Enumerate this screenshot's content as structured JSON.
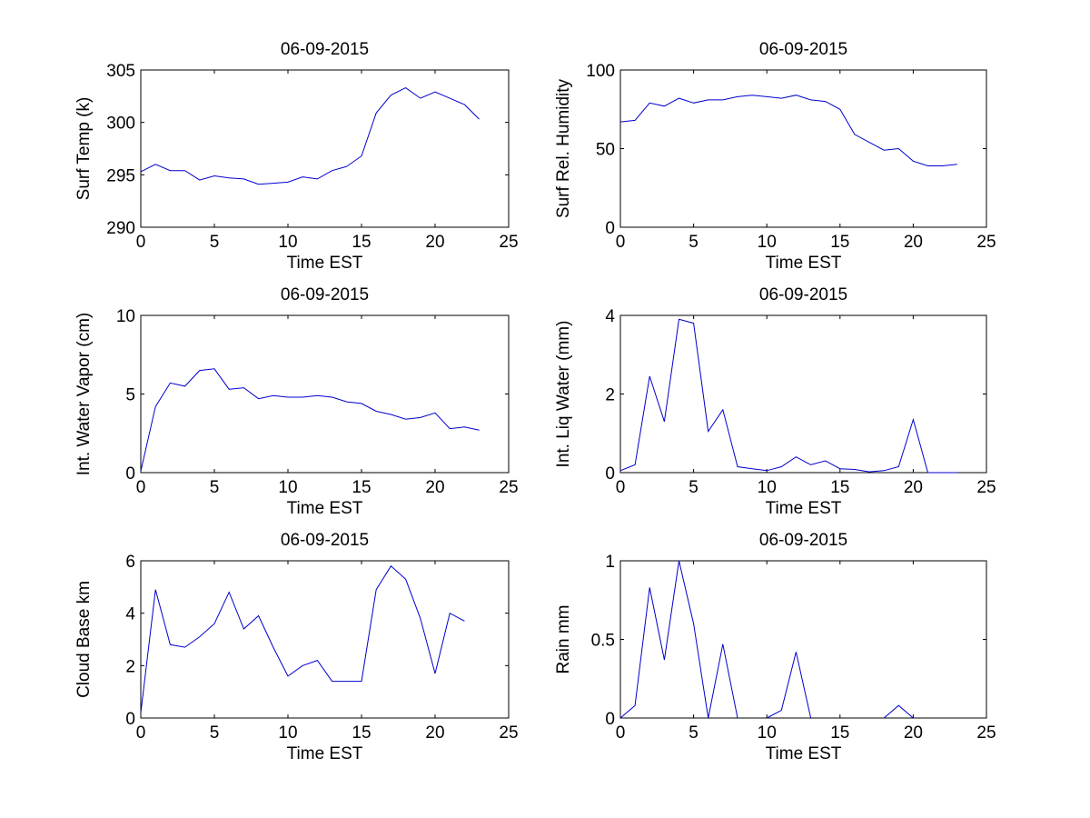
{
  "figure": {
    "colors": {
      "line": "#0000cc",
      "axes": "#000000",
      "background": "#ffffff"
    }
  },
  "chart_data": [
    {
      "type": "line",
      "title": "06-09-2015",
      "xlabel": "Time EST",
      "ylabel": "Surf Temp (k)",
      "xlim": [
        0,
        25
      ],
      "ylim": [
        290,
        305
      ],
      "xticks": [
        0,
        5,
        10,
        15,
        20,
        25
      ],
      "yticks": [
        290,
        295,
        300,
        305
      ],
      "x": [
        0,
        1,
        2,
        3,
        4,
        5,
        6,
        7,
        8,
        9,
        10,
        11,
        12,
        13,
        14,
        15,
        16,
        17,
        18,
        19,
        20,
        21,
        22,
        23
      ],
      "y": [
        295.3,
        296.0,
        295.4,
        295.4,
        294.5,
        294.9,
        294.7,
        294.6,
        294.1,
        294.2,
        294.3,
        294.8,
        294.6,
        295.4,
        295.8,
        296.8,
        300.9,
        302.6,
        303.3,
        302.3,
        302.9,
        302.3,
        301.7,
        300.3
      ]
    },
    {
      "type": "line",
      "title": "06-09-2015",
      "xlabel": "Time EST",
      "ylabel": "Surf Rel. Humidity",
      "xlim": [
        0,
        25
      ],
      "ylim": [
        0,
        100
      ],
      "xticks": [
        0,
        5,
        10,
        15,
        20,
        25
      ],
      "yticks": [
        0,
        50,
        100
      ],
      "x": [
        0,
        1,
        2,
        3,
        4,
        5,
        6,
        7,
        8,
        9,
        10,
        11,
        12,
        13,
        14,
        15,
        16,
        17,
        18,
        19,
        20,
        21,
        22,
        23
      ],
      "y": [
        67,
        68,
        79,
        77,
        82,
        79,
        81,
        81,
        83,
        84,
        83,
        82,
        84,
        81,
        80,
        75,
        59,
        54,
        49,
        50,
        42,
        39,
        39,
        40
      ]
    },
    {
      "type": "line",
      "title": "06-09-2015",
      "xlabel": "Time EST",
      "ylabel": "Int. Water Vapor (cm)",
      "xlim": [
        0,
        25
      ],
      "ylim": [
        0,
        10
      ],
      "xticks": [
        0,
        5,
        10,
        15,
        20,
        25
      ],
      "yticks": [
        0,
        5,
        10
      ],
      "x": [
        0,
        1,
        2,
        3,
        4,
        5,
        6,
        7,
        8,
        9,
        10,
        11,
        12,
        13,
        14,
        15,
        16,
        17,
        18,
        19,
        20,
        21,
        22,
        23
      ],
      "y": [
        0.1,
        4.2,
        5.7,
        5.5,
        6.5,
        6.6,
        5.3,
        5.4,
        4.7,
        4.9,
        4.8,
        4.8,
        4.9,
        4.8,
        4.5,
        4.4,
        3.9,
        3.7,
        3.4,
        3.5,
        3.8,
        2.8,
        2.9,
        2.7
      ]
    },
    {
      "type": "line",
      "title": "06-09-2015",
      "xlabel": "Time EST",
      "ylabel": "Int. Liq Water (mm)",
      "xlim": [
        0,
        25
      ],
      "ylim": [
        0,
        4
      ],
      "xticks": [
        0,
        5,
        10,
        15,
        20,
        25
      ],
      "yticks": [
        0,
        2,
        4
      ],
      "x": [
        0,
        1,
        2,
        3,
        4,
        5,
        6,
        7,
        8,
        9,
        10,
        11,
        12,
        13,
        14,
        15,
        16,
        17,
        18,
        19,
        20,
        21,
        22,
        23
      ],
      "y": [
        0.05,
        0.2,
        2.45,
        1.3,
        3.9,
        3.8,
        1.05,
        1.6,
        0.15,
        0.1,
        0.05,
        0.15,
        0.4,
        0.2,
        0.3,
        0.1,
        0.08,
        0.02,
        0.05,
        0.15,
        1.35,
        0.0,
        0.0,
        0.0
      ]
    },
    {
      "type": "line",
      "title": "06-09-2015",
      "xlabel": "Time EST",
      "ylabel": "Cloud Base km",
      "xlim": [
        0,
        25
      ],
      "ylim": [
        0,
        6
      ],
      "xticks": [
        0,
        5,
        10,
        15,
        20,
        25
      ],
      "yticks": [
        0,
        2,
        4,
        6
      ],
      "x": [
        0,
        1,
        2,
        3,
        4,
        5,
        6,
        7,
        8,
        9,
        10,
        11,
        12,
        13,
        14,
        15,
        16,
        17,
        18,
        19,
        20,
        21,
        22
      ],
      "y": [
        0.2,
        4.9,
        2.8,
        2.7,
        3.1,
        3.6,
        4.8,
        3.4,
        3.9,
        2.7,
        1.6,
        2.0,
        2.2,
        1.4,
        1.4,
        1.4,
        4.9,
        5.8,
        5.3,
        3.8,
        1.7,
        4.0,
        3.7
      ]
    },
    {
      "type": "line",
      "title": "06-09-2015",
      "xlabel": "Time EST",
      "ylabel": "Rain mm",
      "xlim": [
        0,
        25
      ],
      "ylim": [
        0,
        1
      ],
      "xticks": [
        0,
        5,
        10,
        15,
        20,
        25
      ],
      "yticks": [
        0,
        0.5,
        1
      ],
      "x": [
        0,
        1,
        2,
        3,
        4,
        5,
        6,
        7,
        8,
        9,
        10,
        11,
        12,
        13,
        14,
        15,
        16,
        17,
        18,
        19,
        20
      ],
      "y": [
        0.0,
        0.08,
        0.83,
        0.37,
        1.0,
        0.6,
        0.0,
        0.47,
        0.0,
        null,
        0.0,
        0.05,
        0.42,
        0.0,
        null,
        null,
        null,
        null,
        0.0,
        0.08,
        0.0
      ]
    }
  ]
}
